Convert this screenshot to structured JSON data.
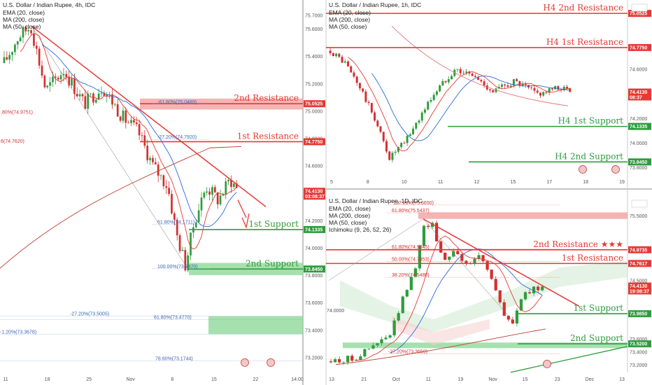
{
  "colors": {
    "red": "#e53935",
    "green": "#2e9c3c",
    "redZone": "#f4a0a0",
    "greenZone": "#8fd99a",
    "up": "#2e9c3c",
    "down": "#d32f2f",
    "ema": "#e53935",
    "ma200": "#c0392b",
    "ma50": "#2a6bd6"
  },
  "chart_data": [
    {
      "type": "candlestick",
      "panel": "4h",
      "title": "U.S. Dollar / Indian Rupee, 4h, IDC",
      "indicators": [
        "EMA (20, close)",
        "MA (200, close)",
        "MA (50, close)"
      ],
      "ylim": [
        73.1,
        75.8
      ],
      "price_ticks": [
        "75.7000",
        "75.6000",
        "75.4000",
        "75.2000",
        "75.0000",
        "74.8000",
        "74.6000",
        "74.2000",
        "74.0000",
        "73.8000",
        "73.6000",
        "73.4000",
        "73.2000"
      ],
      "x_ticks": [
        "11",
        "18",
        "25",
        "Nov",
        "8",
        "15",
        "22",
        "14:00"
      ],
      "price_tags": [
        {
          "label": "75.0525",
          "value": 75.0525,
          "color": "#e53935"
        },
        {
          "label": "74.7750",
          "value": 74.775,
          "color": "#e53935"
        },
        {
          "label": "74.4130",
          "value": 74.413,
          "color": "#e53935",
          "sub": "03:08:37"
        },
        {
          "label": "74.1335",
          "value": 74.1335,
          "color": "#2e9c3c"
        },
        {
          "label": "73.8450",
          "value": 73.845,
          "color": "#2e9c3c"
        }
      ],
      "levels": [
        {
          "name": "2nd Resistance",
          "value": 75.0525,
          "color": "#e53935"
        },
        {
          "name": "1st Resistance",
          "value": 74.775,
          "color": "#e53935"
        },
        {
          "name": "1st Support",
          "value": 74.1335,
          "color": "#2e9c3c"
        },
        {
          "name": "2nd Support",
          "value": 73.845,
          "color": "#2e9c3c"
        }
      ],
      "fib_labels": [
        {
          "text": "-61.80%(75.0489)",
          "value": 75.0489
        },
        {
          "text": "-27.20%(74.7920)",
          "value": 74.792
        },
        {
          "text": "61.80%(74.1711)",
          "value": 74.1711
        },
        {
          "text": "100.00%(73.8470)",
          "value": 73.847
        },
        {
          "text": "-27.20%(73.5005)",
          "value": 73.5005
        },
        {
          "text": "61.80%(73.4770)",
          "value": 73.477
        },
        {
          "text": "-1.20%(73.3678)",
          "value": 73.3678
        },
        {
          "text": "78.60%(73.1744)",
          "value": 73.1744
        }
      ],
      "left_labels": [
        {
          "text": ".80%(74.9751)",
          "value": 74.9751
        },
        {
          "text": "6(74.7620)",
          "value": 74.762
        }
      ]
    },
    {
      "type": "candlestick",
      "panel": "1h",
      "title": "U.S. Dollar / Indian Rupee, 1h, IDC",
      "indicators": [
        "EMA (20, close)",
        "MA (200, close)",
        "MA (50, close)"
      ],
      "ylim": [
        73.75,
        75.15
      ],
      "price_ticks": [
        "74.6000",
        "74.4000",
        "74.2000",
        "74.0000",
        "73.8000"
      ],
      "x_ticks": [
        "5",
        "8",
        "10",
        "11",
        "12",
        "15",
        "17",
        "18",
        "19"
      ],
      "price_tags": [
        {
          "label": "75.0525",
          "value": 75.0525,
          "color": "#e53935"
        },
        {
          "label": "74.7750",
          "value": 74.775,
          "color": "#e53935"
        },
        {
          "label": "74.4130",
          "value": 74.413,
          "color": "#e53935",
          "sub": "08:37"
        },
        {
          "label": "74.1335",
          "value": 74.1335,
          "color": "#2e9c3c"
        },
        {
          "label": "73.8450",
          "value": 73.845,
          "color": "#2e9c3c"
        }
      ],
      "levels": [
        {
          "name": "H4 2nd Resistance",
          "value": 75.0525,
          "color": "#e53935"
        },
        {
          "name": "H4 1st Resistance",
          "value": 74.775,
          "color": "#e53935"
        },
        {
          "name": "H4 1st Support",
          "value": 74.1335,
          "color": "#2e9c3c"
        },
        {
          "name": "H4 2nd Support",
          "value": 73.845,
          "color": "#2e9c3c"
        }
      ]
    },
    {
      "type": "candlestick",
      "panel": "1D",
      "title": "U.S. Dollar / Indian Rupee, 1D, IDC",
      "indicators": [
        "EMA (20, close)",
        "MA (200, close)",
        "MA (50, close)",
        "Ichimoku (9, 26, 52, 26)"
      ],
      "ylim": [
        73.1,
        75.75
      ],
      "price_ticks": [
        "75.5000",
        "74.5000",
        "73.6000",
        "73.4000",
        "73.2000"
      ],
      "x_ticks": [
        "13",
        "21",
        "Oct",
        "11",
        "19",
        "Nov",
        "15",
        "23",
        "Dec",
        "13"
      ],
      "price_tags": [
        {
          "label": "74.9735",
          "value": 74.9735,
          "color": "#e53935"
        },
        {
          "label": "74.7617",
          "value": 74.7617,
          "color": "#e53935"
        },
        {
          "label": "74.4130",
          "value": 74.413,
          "color": "#e53935",
          "sub": "19:08:37"
        },
        {
          "label": "73.9850",
          "value": 73.985,
          "color": "#2e9c3c"
        },
        {
          "label": "73.5200",
          "value": 73.52,
          "color": "#2e9c3c"
        }
      ],
      "left_labels": [
        {
          "text": "74.0000",
          "value": 74.0
        }
      ],
      "levels": [
        {
          "name": "2nd Resistance ★★★",
          "value": 74.9735,
          "color": "#e53935"
        },
        {
          "name": "1st Resistance",
          "value": 74.7617,
          "color": "#e53935"
        },
        {
          "name": "1st Support",
          "value": 73.985,
          "color": "#2e9c3c"
        },
        {
          "name": "2nd Support",
          "value": 73.52,
          "color": "#2e9c3c"
        }
      ],
      "fib_labels": [
        {
          "text": "-127.20%(75.6650)",
          "value": 75.665
        },
        {
          "text": "61.80%(75.5437)",
          "value": 75.5437
        },
        {
          "text": "61.80%(74.9845)",
          "value": 74.9845
        },
        {
          "text": "50.00%(74.7953)",
          "value": 74.7953
        },
        {
          "text": "38.20%(74.5480)",
          "value": 74.548
        },
        {
          "text": "-27.20%(73.3659)",
          "value": 73.3659
        }
      ]
    }
  ]
}
